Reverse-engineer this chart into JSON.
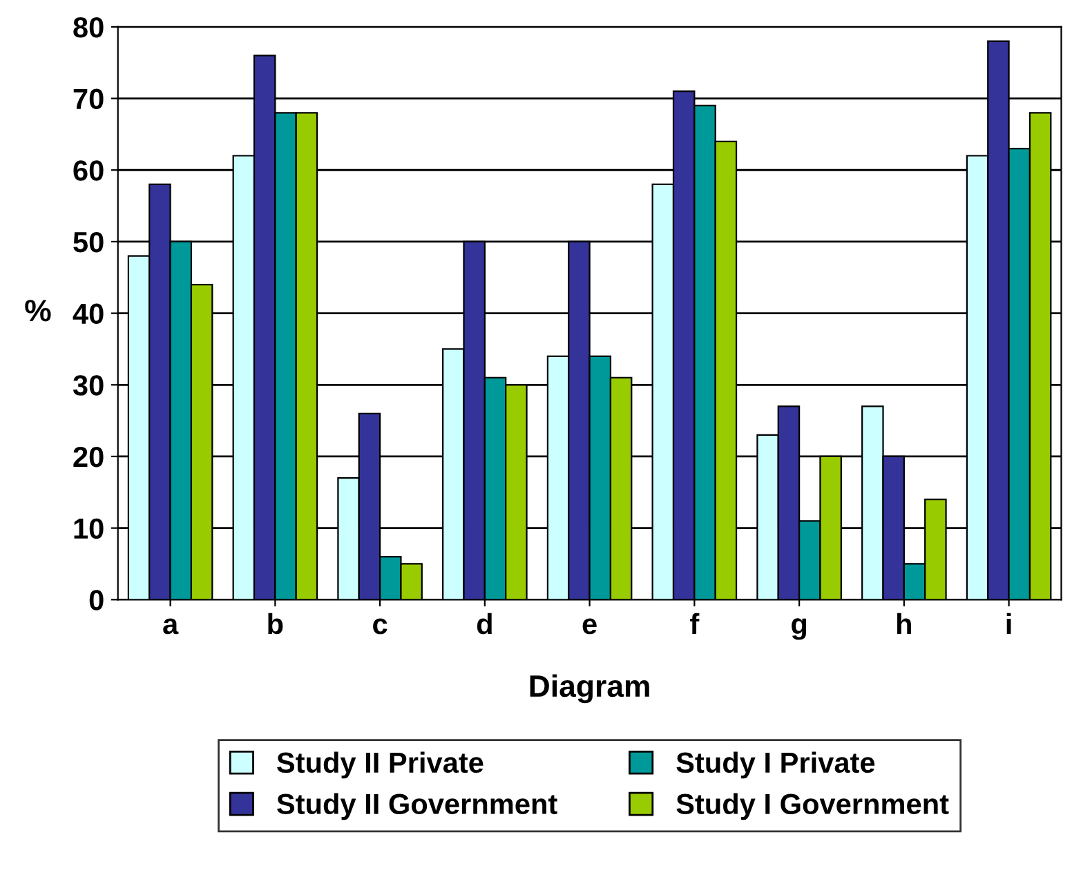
{
  "chart_data": {
    "type": "bar",
    "xlabel": "Diagram",
    "ylabel": "%",
    "categories": [
      "a",
      "b",
      "c",
      "d",
      "e",
      "f",
      "g",
      "h",
      "i"
    ],
    "series": [
      {
        "name": "Study II Private",
        "color": "#ccffff",
        "values": [
          48,
          62,
          17,
          35,
          34,
          58,
          23,
          27,
          62
        ]
      },
      {
        "name": "Study II Government",
        "color": "#333399",
        "values": [
          58,
          76,
          26,
          50,
          50,
          71,
          27,
          20,
          78
        ]
      },
      {
        "name": "Study I Private",
        "color": "#009999",
        "values": [
          50,
          68,
          6,
          31,
          34,
          69,
          11,
          5,
          63
        ]
      },
      {
        "name": "Study I Government",
        "color": "#99cc00",
        "values": [
          44,
          68,
          5,
          30,
          31,
          64,
          20,
          14,
          68
        ]
      }
    ],
    "ylim": [
      0,
      80
    ],
    "yticks": [
      0,
      10,
      20,
      30,
      40,
      50,
      60,
      70,
      80
    ],
    "grid": "y",
    "legend": "bottom"
  }
}
